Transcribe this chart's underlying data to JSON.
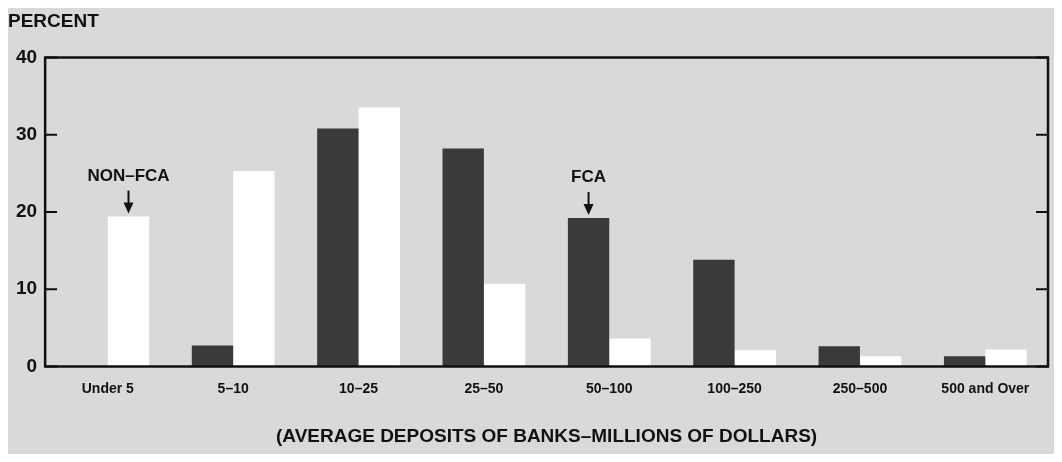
{
  "chart_data": {
    "type": "bar",
    "ylabel": "PERCENT",
    "xlabel": "(AVERAGE DEPOSITS OF BANKS–MILLIONS OF DOLLARS)",
    "categories": [
      "Under 5",
      "5–10",
      "10–25",
      "25–50",
      "50–100",
      "100–250",
      "250–500",
      "500 and Over"
    ],
    "series": [
      {
        "color": "#3a3a3a",
        "values": [
          0,
          2.7,
          30.8,
          28.2,
          19.2,
          13.8,
          2.6,
          1.3
        ]
      },
      {
        "color": "#ffffff",
        "values": [
          19.4,
          25.3,
          33.5,
          10.7,
          3.6,
          2.1,
          1.3,
          2.2
        ]
      }
    ],
    "ylim": [
      0,
      40
    ],
    "yticks": [
      0,
      10,
      20,
      30,
      40
    ],
    "annotations": [
      {
        "text": "NON–FCA",
        "x": "Under 5",
        "y": 19.4
      },
      {
        "text": "FCA",
        "x": "50–100",
        "y": 19.2
      }
    ],
    "legend": false
  }
}
